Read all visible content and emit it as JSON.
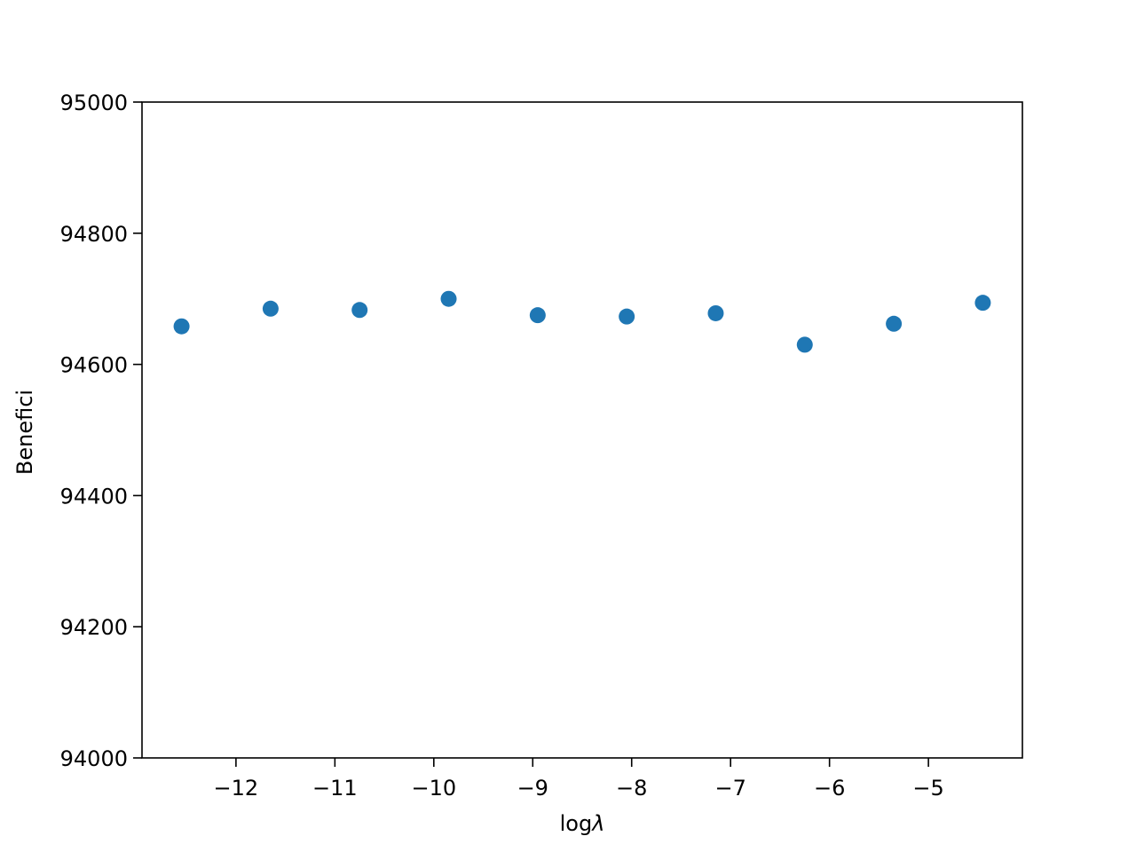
{
  "chart_data": {
    "type": "scatter",
    "title": "",
    "xlabel": "log",
    "xlabel_symbol": "λ",
    "ylabel": "Benefici",
    "xlim": [
      -12.95,
      -4.05
    ],
    "ylim": [
      94000,
      95000
    ],
    "x_ticks": [
      -12,
      -11,
      -10,
      -9,
      -8,
      -7,
      -6,
      -5
    ],
    "y_ticks": [
      94000,
      94200,
      94400,
      94600,
      94800,
      95000
    ],
    "grid": false,
    "legend": "none",
    "marker_color": "#1f77b4",
    "series": [
      {
        "x": [
          -12.55,
          -11.65,
          -10.75,
          -9.85,
          -8.95,
          -8.05,
          -7.15,
          -6.25,
          -5.35,
          -4.45
        ],
        "y": [
          94658,
          94685,
          94683,
          94700,
          94675,
          94673,
          94678,
          94630,
          94662,
          94694
        ]
      }
    ]
  }
}
